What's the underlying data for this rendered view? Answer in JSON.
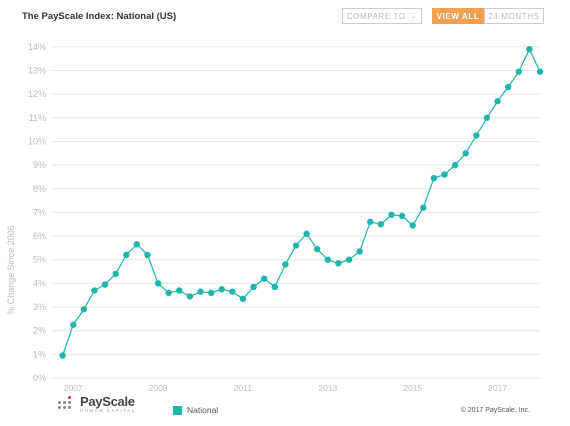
{
  "header": {
    "title": "The PayScale Index: National (US)",
    "compare_label": "COMPARE TO",
    "view_all_label": "VIEW ALL",
    "months_label": "24 MONTHS"
  },
  "colors": {
    "series": "#1fb5aa",
    "accent": "#f0a050",
    "grid": "#e8e8e8",
    "axis_text": "#bbbbbb"
  },
  "footer": {
    "logo_text": "PayScale",
    "logo_sub": "HUMAN CAPITAL",
    "copyright": "© 2017 PayScale, Inc."
  },
  "chart_data": {
    "type": "line",
    "title": "The PayScale Index: National (US)",
    "ylabel": "% Change Since 2006",
    "xlabel": "",
    "ylim": [
      0,
      14.5
    ],
    "xlim": [
      2006.5,
      2018.0
    ],
    "y_ticks": [
      "0%",
      "1%",
      "2%",
      "3%",
      "4%",
      "5%",
      "6%",
      "7%",
      "8%",
      "9%",
      "10%",
      "11%",
      "12%",
      "13%",
      "14%"
    ],
    "x_ticks": [
      "2007",
      "2009",
      "2011",
      "2013",
      "2015",
      "2017"
    ],
    "grid": true,
    "legend_placement": "bottom",
    "series": [
      {
        "name": "National",
        "x": [
          2006.75,
          2007.0,
          2007.25,
          2007.5,
          2007.75,
          2008.0,
          2008.25,
          2008.5,
          2008.75,
          2009.0,
          2009.25,
          2009.5,
          2009.75,
          2010.0,
          2010.25,
          2010.5,
          2010.75,
          2011.0,
          2011.25,
          2011.5,
          2011.75,
          2012.0,
          2012.25,
          2012.5,
          2012.75,
          2013.0,
          2013.25,
          2013.5,
          2013.75,
          2014.0,
          2014.25,
          2014.5,
          2014.75,
          2015.0,
          2015.25,
          2015.5,
          2015.75,
          2016.0,
          2016.25,
          2016.5,
          2016.75,
          2017.0,
          2017.25,
          2017.5,
          2017.75,
          2018.0
        ],
        "values": [
          0.95,
          2.25,
          2.9,
          3.7,
          3.95,
          4.4,
          5.2,
          5.65,
          5.2,
          4.0,
          3.6,
          3.7,
          3.45,
          3.65,
          3.6,
          3.75,
          3.65,
          3.35,
          3.85,
          4.2,
          3.85,
          4.8,
          5.6,
          6.1,
          5.45,
          5.0,
          4.85,
          5.0,
          5.35,
          6.6,
          6.5,
          6.9,
          6.85,
          6.45,
          7.2,
          8.45,
          8.6,
          9.0,
          9.5,
          10.25,
          11.0,
          11.7,
          12.3,
          12.95,
          13.9,
          12.95
        ]
      }
    ]
  }
}
